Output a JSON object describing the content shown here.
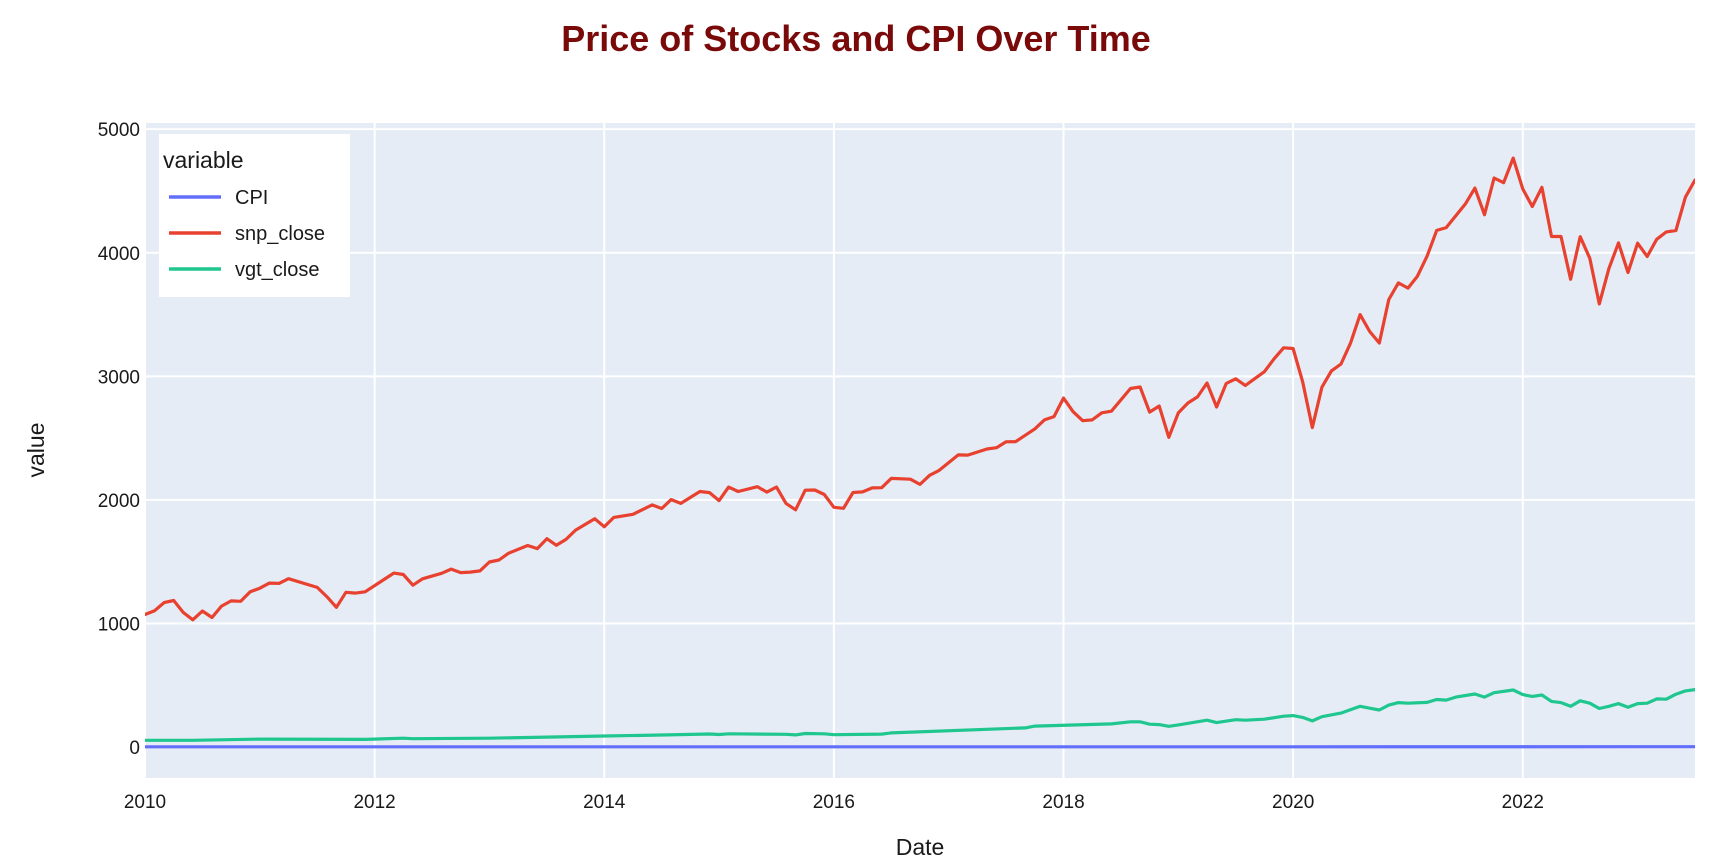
{
  "chart_data": {
    "type": "line",
    "title": "Price of Stocks and CPI Over Time",
    "xlabel": "Date",
    "ylabel": "value",
    "xlim": [
      "2010-01",
      "2023-07"
    ],
    "ylim": [
      -250,
      5050
    ],
    "x_ticks": [
      "2010",
      "2012",
      "2014",
      "2016",
      "2018",
      "2020",
      "2022"
    ],
    "y_ticks": [
      0,
      1000,
      2000,
      3000,
      4000,
      5000
    ],
    "grid": true,
    "legend": {
      "title": "variable",
      "position": "top-left"
    },
    "series": [
      {
        "name": "CPI",
        "color": "#636efa",
        "points": [
          [
            "2010-01",
            2.2
          ],
          [
            "2015-01",
            2.3
          ],
          [
            "2020-01",
            2.6
          ],
          [
            "2023-07",
            3.0
          ]
        ]
      },
      {
        "name": "snp_close",
        "color": "#e8412f",
        "points": [
          [
            "2010-01",
            1073
          ],
          [
            "2010-02",
            1104
          ],
          [
            "2010-03",
            1169
          ],
          [
            "2010-04",
            1186
          ],
          [
            "2010-05",
            1089
          ],
          [
            "2010-06",
            1030
          ],
          [
            "2010-07",
            1101
          ],
          [
            "2010-08",
            1049
          ],
          [
            "2010-09",
            1141
          ],
          [
            "2010-10",
            1183
          ],
          [
            "2010-11",
            1180
          ],
          [
            "2010-12",
            1257
          ],
          [
            "2011-01",
            1286
          ],
          [
            "2011-02",
            1327
          ],
          [
            "2011-03",
            1325
          ],
          [
            "2011-04",
            1363
          ],
          [
            "2011-07",
            1292
          ],
          [
            "2011-08",
            1218
          ],
          [
            "2011-09",
            1131
          ],
          [
            "2011-10",
            1253
          ],
          [
            "2011-11",
            1246
          ],
          [
            "2011-12",
            1257
          ],
          [
            "2012-03",
            1408
          ],
          [
            "2012-04",
            1397
          ],
          [
            "2012-05",
            1310
          ],
          [
            "2012-06",
            1362
          ],
          [
            "2012-08",
            1406
          ],
          [
            "2012-09",
            1440
          ],
          [
            "2012-10",
            1412
          ],
          [
            "2012-11",
            1416
          ],
          [
            "2012-12",
            1426
          ],
          [
            "2013-01",
            1498
          ],
          [
            "2013-02",
            1514
          ],
          [
            "2013-03",
            1569
          ],
          [
            "2013-05",
            1631
          ],
          [
            "2013-06",
            1606
          ],
          [
            "2013-07",
            1686
          ],
          [
            "2013-08",
            1633
          ],
          [
            "2013-09",
            1681
          ],
          [
            "2013-10",
            1756
          ],
          [
            "2013-12",
            1848
          ],
          [
            "2014-01",
            1783
          ],
          [
            "2014-02",
            1859
          ],
          [
            "2014-04",
            1884
          ],
          [
            "2014-06",
            1960
          ],
          [
            "2014-07",
            1931
          ],
          [
            "2014-08",
            2003
          ],
          [
            "2014-09",
            1972
          ],
          [
            "2014-11",
            2068
          ],
          [
            "2014-12",
            2059
          ],
          [
            "2015-01",
            1995
          ],
          [
            "2015-02",
            2104
          ],
          [
            "2015-03",
            2068
          ],
          [
            "2015-05",
            2107
          ],
          [
            "2015-06",
            2063
          ],
          [
            "2015-07",
            2104
          ],
          [
            "2015-08",
            1972
          ],
          [
            "2015-09",
            1920
          ],
          [
            "2015-10",
            2079
          ],
          [
            "2015-11",
            2080
          ],
          [
            "2015-12",
            2044
          ],
          [
            "2016-01",
            1940
          ],
          [
            "2016-02",
            1932
          ],
          [
            "2016-03",
            2060
          ],
          [
            "2016-04",
            2065
          ],
          [
            "2016-05",
            2097
          ],
          [
            "2016-06",
            2099
          ],
          [
            "2016-07",
            2174
          ],
          [
            "2016-09",
            2168
          ],
          [
            "2016-10",
            2126
          ],
          [
            "2016-11",
            2199
          ],
          [
            "2016-12",
            2239
          ],
          [
            "2017-02",
            2364
          ],
          [
            "2017-03",
            2363
          ],
          [
            "2017-05",
            2412
          ],
          [
            "2017-06",
            2423
          ],
          [
            "2017-07",
            2470
          ],
          [
            "2017-08",
            2472
          ],
          [
            "2017-10",
            2575
          ],
          [
            "2017-11",
            2648
          ],
          [
            "2017-12",
            2674
          ],
          [
            "2018-01",
            2824
          ],
          [
            "2018-02",
            2714
          ],
          [
            "2018-03",
            2641
          ],
          [
            "2018-04",
            2648
          ],
          [
            "2018-05",
            2705
          ],
          [
            "2018-06",
            2718
          ],
          [
            "2018-08",
            2902
          ],
          [
            "2018-09",
            2914
          ],
          [
            "2018-10",
            2711
          ],
          [
            "2018-11",
            2760
          ],
          [
            "2018-12",
            2507
          ],
          [
            "2019-01",
            2704
          ],
          [
            "2019-02",
            2784
          ],
          [
            "2019-03",
            2834
          ],
          [
            "2019-04",
            2946
          ],
          [
            "2019-05",
            2752
          ],
          [
            "2019-06",
            2942
          ],
          [
            "2019-07",
            2980
          ],
          [
            "2019-08",
            2926
          ],
          [
            "2019-10",
            3038
          ],
          [
            "2019-11",
            3141
          ],
          [
            "2019-12",
            3231
          ],
          [
            "2020-01",
            3225
          ],
          [
            "2020-02",
            2954
          ],
          [
            "2020-03",
            2585
          ],
          [
            "2020-04",
            2912
          ],
          [
            "2020-05",
            3044
          ],
          [
            "2020-06",
            3100
          ],
          [
            "2020-07",
            3271
          ],
          [
            "2020-08",
            3500
          ],
          [
            "2020-09",
            3363
          ],
          [
            "2020-10",
            3270
          ],
          [
            "2020-11",
            3622
          ],
          [
            "2020-12",
            3756
          ],
          [
            "2021-01",
            3714
          ],
          [
            "2021-02",
            3811
          ],
          [
            "2021-03",
            3973
          ],
          [
            "2021-04",
            4181
          ],
          [
            "2021-05",
            4204
          ],
          [
            "2021-07",
            4395
          ],
          [
            "2021-08",
            4523
          ],
          [
            "2021-09",
            4308
          ],
          [
            "2021-10",
            4605
          ],
          [
            "2021-11",
            4567
          ],
          [
            "2021-12",
            4766
          ],
          [
            "2022-01",
            4516
          ],
          [
            "2022-02",
            4374
          ],
          [
            "2022-03",
            4530
          ],
          [
            "2022-04",
            4132
          ],
          [
            "2022-05",
            4132
          ],
          [
            "2022-06",
            3785
          ],
          [
            "2022-07",
            4130
          ],
          [
            "2022-08",
            3955
          ],
          [
            "2022-09",
            3586
          ],
          [
            "2022-10",
            3872
          ],
          [
            "2022-11",
            4080
          ],
          [
            "2022-12",
            3840
          ],
          [
            "2023-01",
            4077
          ],
          [
            "2023-02",
            3970
          ],
          [
            "2023-03",
            4109
          ],
          [
            "2023-04",
            4169
          ],
          [
            "2023-05",
            4180
          ],
          [
            "2023-06",
            4450
          ],
          [
            "2023-07",
            4589
          ],
          [
            "2023-08",
            4508
          ]
        ]
      },
      {
        "name": "vgt_close",
        "color": "#1fc78f",
        "points": [
          [
            "2010-01",
            55
          ],
          [
            "2010-06",
            55
          ],
          [
            "2011-01",
            65
          ],
          [
            "2011-12",
            62
          ],
          [
            "2012-04",
            72
          ],
          [
            "2012-05",
            68
          ],
          [
            "2013-01",
            72
          ],
          [
            "2014-01",
            90
          ],
          [
            "2014-07",
            98
          ],
          [
            "2014-12",
            106
          ],
          [
            "2015-01",
            102
          ],
          [
            "2015-02",
            108
          ],
          [
            "2015-08",
            104
          ],
          [
            "2015-09",
            99
          ],
          [
            "2015-10",
            110
          ],
          [
            "2015-12",
            108
          ],
          [
            "2016-01",
            100
          ],
          [
            "2016-06",
            105
          ],
          [
            "2016-07",
            115
          ],
          [
            "2017-09",
            155
          ],
          [
            "2017-10",
            170
          ],
          [
            "2018-06",
            188
          ],
          [
            "2018-08",
            205
          ],
          [
            "2018-09",
            205
          ],
          [
            "2018-10",
            185
          ],
          [
            "2018-11",
            182
          ],
          [
            "2018-12",
            168
          ],
          [
            "2019-01",
            180
          ],
          [
            "2019-04",
            218
          ],
          [
            "2019-05",
            198
          ],
          [
            "2019-07",
            222
          ],
          [
            "2019-08",
            218
          ],
          [
            "2019-10",
            226
          ],
          [
            "2019-12",
            250
          ],
          [
            "2020-01",
            255
          ],
          [
            "2020-02",
            240
          ],
          [
            "2020-03",
            212
          ],
          [
            "2020-04",
            246
          ],
          [
            "2020-06",
            275
          ],
          [
            "2020-08",
            330
          ],
          [
            "2020-09",
            315
          ],
          [
            "2020-10",
            300
          ],
          [
            "2020-11",
            340
          ],
          [
            "2020-12",
            360
          ],
          [
            "2021-01",
            355
          ],
          [
            "2021-03",
            362
          ],
          [
            "2021-04",
            385
          ],
          [
            "2021-05",
            380
          ],
          [
            "2021-06",
            405
          ],
          [
            "2021-08",
            430
          ],
          [
            "2021-09",
            405
          ],
          [
            "2021-10",
            440
          ],
          [
            "2021-12",
            462
          ],
          [
            "2022-01",
            425
          ],
          [
            "2022-02",
            410
          ],
          [
            "2022-03",
            422
          ],
          [
            "2022-04",
            370
          ],
          [
            "2022-05",
            360
          ],
          [
            "2022-06",
            330
          ],
          [
            "2022-07",
            375
          ],
          [
            "2022-08",
            355
          ],
          [
            "2022-09",
            312
          ],
          [
            "2022-10",
            330
          ],
          [
            "2022-11",
            352
          ],
          [
            "2022-12",
            322
          ],
          [
            "2023-01",
            352
          ],
          [
            "2023-02",
            355
          ],
          [
            "2023-03",
            390
          ],
          [
            "2023-04",
            388
          ],
          [
            "2023-05",
            428
          ],
          [
            "2023-06",
            455
          ],
          [
            "2023-07",
            465
          ],
          [
            "2023-08",
            450
          ]
        ]
      }
    ]
  }
}
